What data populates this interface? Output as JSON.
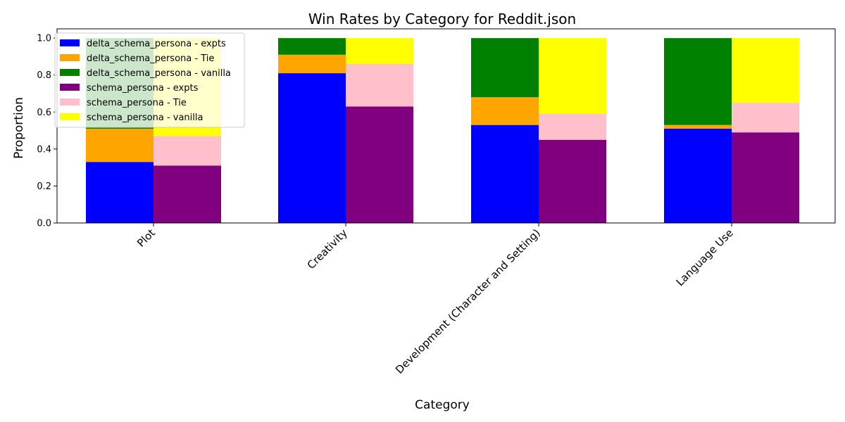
{
  "chart_data": {
    "type": "bar",
    "stacked": true,
    "title": "Win Rates by Category for Reddit.json",
    "xlabel": "Category",
    "ylabel": "Proportion",
    "ylim": [
      0,
      1.05
    ],
    "yticks": [
      "0.0",
      "0.2",
      "0.4",
      "0.6",
      "0.8",
      "1.0"
    ],
    "categories": [
      "Plot",
      "Creativity",
      "Development (Character and Setting)",
      "Language Use"
    ],
    "groups": [
      {
        "name": "delta_schema_persona",
        "series": [
          {
            "name": "delta_schema_persona - expts",
            "color": "#0000ff",
            "values": [
              0.33,
              0.81,
              0.53,
              0.51
            ]
          },
          {
            "name": "delta_schema_persona - Tie",
            "color": "#ffa500",
            "values": [
              0.18,
              0.1,
              0.15,
              0.02
            ]
          },
          {
            "name": "delta_schema_persona - vanilla",
            "color": "#008000",
            "values": [
              0.49,
              0.09,
              0.32,
              0.47
            ]
          }
        ]
      },
      {
        "name": "schema_persona",
        "series": [
          {
            "name": "schema_persona - expts",
            "color": "#800080",
            "values": [
              0.31,
              0.63,
              0.45,
              0.49
            ]
          },
          {
            "name": "schema_persona - Tie",
            "color": "#ffc0cb",
            "values": [
              0.16,
              0.23,
              0.14,
              0.16
            ]
          },
          {
            "name": "schema_persona - vanilla",
            "color": "#ffff00",
            "values": [
              0.53,
              0.14,
              0.41,
              0.35
            ]
          }
        ]
      }
    ],
    "grid": false,
    "legend_position": "upper-left"
  }
}
